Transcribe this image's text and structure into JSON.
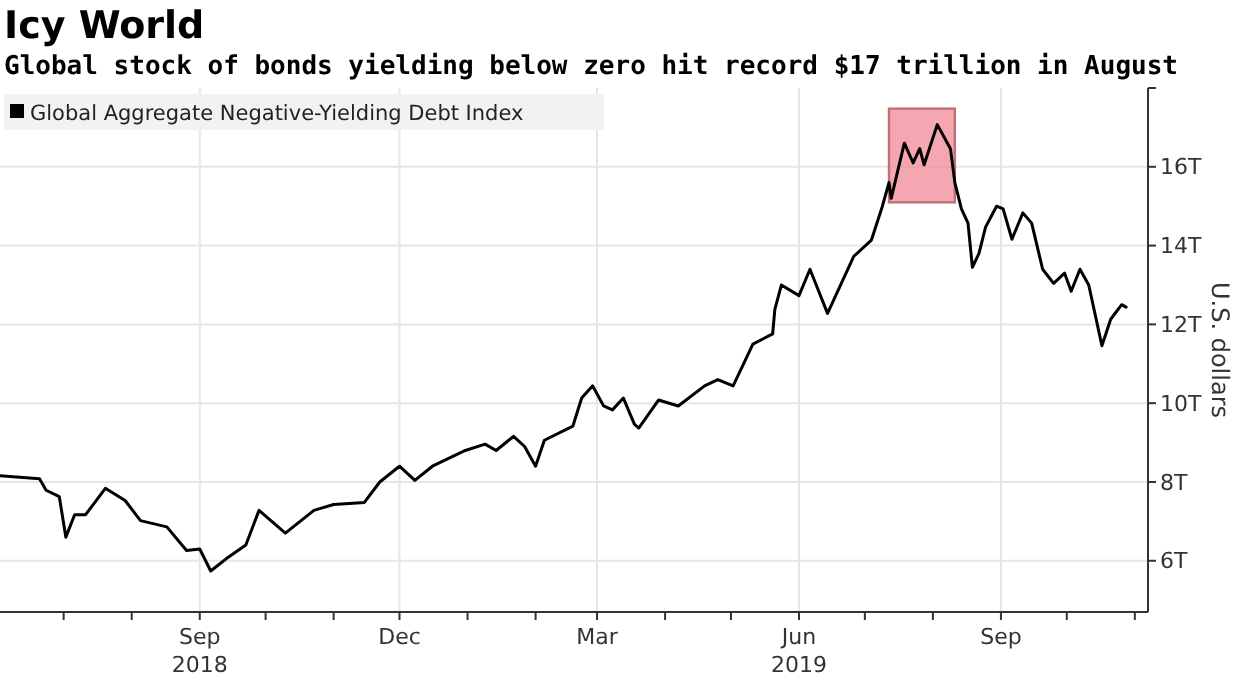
{
  "chart_data": {
    "type": "line",
    "title": "Icy World",
    "subtitle": "Global stock of bonds yielding below zero hit record $17 trillion in August",
    "ylabel": "U.S. dollars",
    "legend": "top left",
    "grid": true,
    "xlim": [
      "2018-06-02",
      "2019-11-07"
    ],
    "xticks": [
      {
        "value": "2018-07-01",
        "label": null
      },
      {
        "value": "2018-08-01",
        "label": null
      },
      {
        "value": "2018-09-01",
        "label": "Sep\n2018"
      },
      {
        "value": "2018-10-01",
        "label": null
      },
      {
        "value": "2018-11-01",
        "label": null
      },
      {
        "value": "2018-12-01",
        "label": "Dec"
      },
      {
        "value": "2019-01-01",
        "label": null
      },
      {
        "value": "2019-02-01",
        "label": null
      },
      {
        "value": "2019-03-01",
        "label": "Mar"
      },
      {
        "value": "2019-04-01",
        "label": null
      },
      {
        "value": "2019-05-01",
        "label": null
      },
      {
        "value": "2019-06-01",
        "label": "Jun\n2019"
      },
      {
        "value": "2019-07-01",
        "label": null
      },
      {
        "value": "2019-08-01",
        "label": null
      },
      {
        "value": "2019-09-01",
        "label": "Sep"
      },
      {
        "value": "2019-10-01",
        "label": null
      },
      {
        "value": "2019-11-01",
        "label": null
      }
    ],
    "ylim": [
      4.7,
      18
    ],
    "yticks": [
      {
        "value": 6,
        "label": "6T"
      },
      {
        "value": 8,
        "label": "8T"
      },
      {
        "value": 10,
        "label": "10T"
      },
      {
        "value": 12,
        "label": "12T"
      },
      {
        "value": 14,
        "label": "14T"
      },
      {
        "value": 16,
        "label": "16T"
      },
      {
        "value": 18,
        "label": null
      }
    ],
    "bands": [
      {
        "axis": "x",
        "from": "2019-07-12",
        "to": "2019-08-11",
        "color": "#f08a96"
      }
    ],
    "series": [
      {
        "name": "Global Aggregate Negative-Yielding Debt Index",
        "color": "#000000",
        "x": [
          "2018-06-02",
          "2018-06-20",
          "2018-06-23",
          "2018-06-29",
          "2018-07-02",
          "2018-07-06",
          "2018-07-11",
          "2018-07-20",
          "2018-07-29",
          "2018-08-05",
          "2018-08-17",
          "2018-08-26",
          "2018-09-01",
          "2018-09-06",
          "2018-09-13",
          "2018-09-22",
          "2018-09-28",
          "2018-10-10",
          "2018-10-23",
          "2018-11-01",
          "2018-11-15",
          "2018-11-22",
          "2018-12-01",
          "2018-12-08",
          "2018-12-16",
          "2018-12-31",
          "2019-01-09",
          "2019-01-14",
          "2019-01-22",
          "2019-01-27",
          "2019-02-01",
          "2019-02-05",
          "2019-02-18",
          "2019-02-22",
          "2019-02-27",
          "2019-03-04",
          "2019-03-08",
          "2019-03-13",
          "2019-03-18",
          "2019-03-20",
          "2019-03-29",
          "2019-04-07",
          "2019-04-19",
          "2019-04-25",
          "2019-05-02",
          "2019-05-11",
          "2019-05-20",
          "2019-05-21",
          "2019-05-24",
          "2019-06-01",
          "2019-06-06",
          "2019-06-14",
          "2019-06-26",
          "2019-07-04",
          "2019-07-09",
          "2019-07-12",
          "2019-07-13",
          "2019-07-19",
          "2019-07-23",
          "2019-07-26",
          "2019-07-28",
          "2019-08-03",
          "2019-08-09",
          "2019-08-11",
          "2019-08-14",
          "2019-08-17",
          "2019-08-19",
          "2019-08-22",
          "2019-08-25",
          "2019-08-30",
          "2019-09-02",
          "2019-09-06",
          "2019-09-11",
          "2019-09-15",
          "2019-09-20",
          "2019-09-25",
          "2019-09-30",
          "2019-10-03",
          "2019-10-07",
          "2019-10-11",
          "2019-10-17",
          "2019-10-21",
          "2019-10-26",
          "2019-10-28"
        ],
        "values": [
          8.16,
          8.08,
          7.79,
          7.63,
          6.6,
          7.17,
          7.17,
          7.84,
          7.53,
          7.02,
          6.86,
          6.26,
          6.3,
          5.74,
          6.05,
          6.4,
          7.28,
          6.7,
          7.28,
          7.43,
          7.48,
          8.0,
          8.4,
          8.04,
          8.4,
          8.8,
          8.96,
          8.8,
          9.16,
          8.9,
          8.4,
          9.06,
          9.42,
          10.13,
          10.44,
          9.93,
          9.83,
          10.13,
          9.47,
          9.37,
          10.08,
          9.93,
          10.44,
          10.6,
          10.44,
          11.5,
          11.76,
          12.38,
          13.0,
          12.73,
          13.4,
          12.28,
          13.73,
          14.14,
          15.0,
          15.6,
          15.2,
          16.6,
          16.1,
          16.46,
          16.05,
          17.07,
          16.46,
          15.6,
          14.93,
          14.57,
          13.45,
          13.8,
          14.47,
          15.0,
          14.93,
          14.16,
          14.83,
          14.57,
          13.4,
          13.04,
          13.3,
          12.84,
          13.4,
          13.0,
          11.46,
          12.13,
          12.5,
          12.44
        ]
      }
    ]
  }
}
